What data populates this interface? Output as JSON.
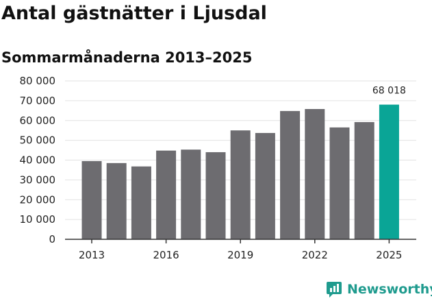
{
  "title": "Antal gästnätter i Ljusdal",
  "subtitle": "Sommarmånaderna 2013–2025",
  "brand": {
    "name": "Newsworthy",
    "color": "#1f9b8e"
  },
  "colors": {
    "bar": "#6d6c70",
    "highlight": "#0aa596",
    "grid": "#e2e2e2",
    "axis": "#333333"
  },
  "chart_data": {
    "type": "bar",
    "title": "Antal gästnätter i Ljusdal",
    "subtitle": "Sommarmånaderna 2013–2025",
    "xlabel": "",
    "ylabel": "",
    "categories": [
      "2013",
      "2014",
      "2015",
      "2016",
      "2017",
      "2018",
      "2019",
      "2020",
      "2021",
      "2022",
      "2023",
      "2024",
      "2025"
    ],
    "values": [
      39500,
      38500,
      36800,
      44800,
      45300,
      44000,
      55000,
      53700,
      64800,
      65800,
      56500,
      59200,
      68018
    ],
    "highlight_index": 12,
    "x_tick_labels": [
      "2013",
      "2016",
      "2019",
      "2022",
      "2025"
    ],
    "y_ticks": [
      0,
      10000,
      20000,
      30000,
      40000,
      50000,
      60000,
      70000,
      80000
    ],
    "y_tick_labels": [
      "0",
      "10 000",
      "20 000",
      "30 000",
      "40 000",
      "50 000",
      "60 000",
      "70 000",
      "80 000"
    ],
    "ylim": [
      0,
      80000
    ],
    "grid": true,
    "legend": "none",
    "annotations": [
      {
        "category": "2025",
        "text": "68 018"
      }
    ]
  }
}
